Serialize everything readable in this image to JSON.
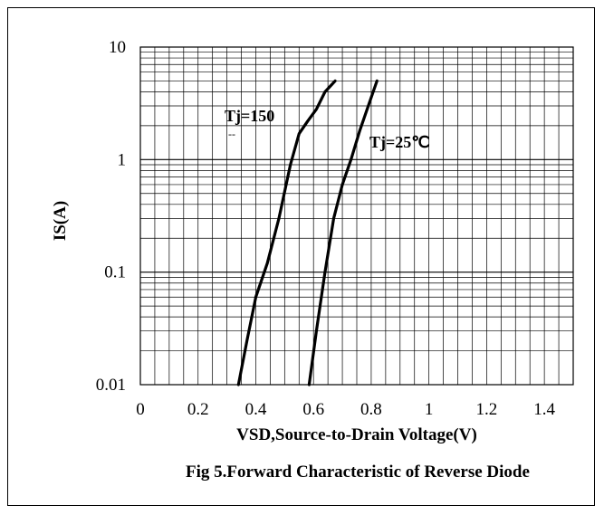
{
  "chart_data": {
    "type": "line",
    "title": "Fig 5.Forward Characteristic of Reverse Diode",
    "xlabel": "VSD,Source-to-Drain Voltage(V)",
    "ylabel": "IS(A)",
    "xlim": [
      0,
      1.5
    ],
    "ylim": [
      0.01,
      10
    ],
    "y_scale": "log",
    "grid": true,
    "x_ticks": [
      "0",
      "0.2",
      "0.4",
      "0.6",
      "0.8",
      "1",
      "1.2",
      "1.4"
    ],
    "y_ticks": [
      "0.01",
      "0.1",
      "1",
      "10"
    ],
    "series": [
      {
        "name": "Tj=150",
        "label_sub": "--",
        "x": [
          0.34,
          0.37,
          0.4,
          0.44,
          0.48,
          0.52,
          0.55,
          0.58,
          0.61,
          0.64,
          0.675
        ],
        "y": [
          0.01,
          0.025,
          0.06,
          0.12,
          0.3,
          0.9,
          1.7,
          2.2,
          2.8,
          4.0,
          5.0
        ]
      },
      {
        "name": "Tj=25℃",
        "x": [
          0.585,
          0.61,
          0.64,
          0.67,
          0.7,
          0.73,
          0.76,
          0.79,
          0.82
        ],
        "y": [
          0.01,
          0.03,
          0.1,
          0.3,
          0.6,
          1.0,
          1.8,
          3.0,
          5.0
        ]
      }
    ]
  }
}
